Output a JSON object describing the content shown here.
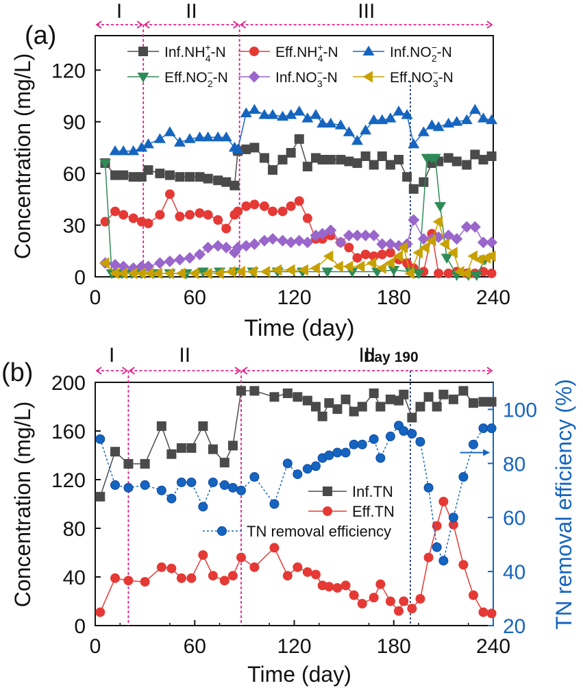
{
  "chart_data": [
    {
      "panel": "(a)",
      "type": "line",
      "xlabel": "Time (day)",
      "ylabel": "Concentration (mg/L)",
      "xlim": [
        0,
        240
      ],
      "ylim": [
        0,
        140
      ],
      "xticks": [
        0,
        60,
        120,
        180,
        240
      ],
      "yticks": [
        0,
        30,
        60,
        90,
        120
      ],
      "phases": [
        {
          "label": "I",
          "start": 0,
          "end": 29
        },
        {
          "label": "II",
          "start": 29,
          "end": 87
        },
        {
          "label": "III",
          "start": 87,
          "end": 240
        }
      ],
      "markers": [
        {
          "x": 190,
          "label": ""
        }
      ],
      "series": [
        {
          "key": "infnh4",
          "name": "Inf.NH₄⁺-N",
          "base": "Inf.NH",
          "sub": "4",
          "sup": "+",
          "tail": "-N",
          "color": "#4a4a4a",
          "marker": "square",
          "x": [
            6,
            12,
            17,
            23,
            28,
            32,
            39,
            45,
            51,
            57,
            63,
            68,
            74,
            79,
            84,
            86,
            91,
            96,
            102,
            107,
            113,
            118,
            123,
            128,
            133,
            137,
            142,
            148,
            153,
            158,
            163,
            168,
            173,
            178,
            183,
            188,
            192,
            198,
            203,
            207,
            213,
            218,
            224,
            229,
            234,
            239
          ],
          "y": [
            66,
            59,
            59,
            58,
            58,
            62,
            60,
            59,
            58,
            58,
            58,
            57,
            56,
            55,
            53,
            73,
            74,
            75,
            69,
            62,
            68,
            72,
            80,
            64,
            69,
            68,
            68,
            68,
            67,
            66,
            70,
            65,
            70,
            65,
            68,
            58,
            51,
            55,
            66,
            67,
            69,
            67,
            65,
            71,
            68,
            70
          ]
        },
        {
          "key": "effnh4",
          "name": "Eff.NH₄⁺-N",
          "base": "Eff.NH",
          "sub": "4",
          "sup": "+",
          "tail": "-N",
          "color": "#e53935",
          "marker": "circle",
          "x": [
            6,
            12,
            17,
            23,
            28,
            32,
            39,
            45,
            51,
            57,
            63,
            68,
            74,
            79,
            84,
            86,
            91,
            96,
            102,
            107,
            113,
            118,
            123,
            128,
            133,
            137,
            142,
            148,
            153,
            158,
            163,
            168,
            173,
            178,
            183,
            188,
            192,
            198,
            203,
            207,
            213,
            218,
            224,
            229,
            234,
            239
          ],
          "y": [
            32,
            38,
            36,
            34,
            32,
            31,
            36,
            48,
            35,
            36,
            37,
            36,
            33,
            28,
            36,
            38,
            41,
            42,
            41,
            38,
            38,
            41,
            44,
            34,
            22,
            22,
            24,
            20,
            17,
            11,
            13,
            12,
            13,
            14,
            10,
            8,
            5,
            3,
            25,
            2,
            2,
            3,
            2,
            2,
            3,
            2
          ]
        },
        {
          "key": "infno2",
          "name": "Inf.NO₂⁻-N",
          "base": "Inf.NO",
          "sub": "2",
          "sup": "−",
          "tail": "-N",
          "color": "#1565c0",
          "marker": "triangle-up",
          "x": [
            12,
            17,
            23,
            28,
            32,
            39,
            45,
            51,
            57,
            63,
            68,
            74,
            79,
            84,
            86,
            91,
            96,
            102,
            107,
            113,
            118,
            123,
            128,
            133,
            137,
            142,
            148,
            153,
            158,
            163,
            168,
            173,
            178,
            183,
            188,
            192,
            198,
            203,
            207,
            213,
            218,
            224,
            229,
            234,
            239
          ],
          "y": [
            73,
            73,
            73,
            75,
            77,
            80,
            84,
            78,
            80,
            81,
            81,
            81,
            81,
            75,
            74,
            95,
            97,
            94,
            94,
            93,
            94,
            96,
            92,
            94,
            89,
            89,
            88,
            84,
            79,
            85,
            91,
            91,
            92,
            96,
            94,
            77,
            84,
            88,
            87,
            89,
            90,
            91,
            97,
            92,
            91
          ]
        },
        {
          "key": "effno2",
          "name": "Eff.NO₂⁻-N",
          "base": "Eff.NO",
          "sub": "2",
          "sup": "−",
          "tail": "-N",
          "color": "#2e8b57",
          "marker": "triangle-down",
          "x": [
            6,
            10,
            16,
            22,
            28,
            35,
            45,
            55,
            65,
            75,
            84,
            95,
            110,
            125,
            140,
            155,
            170,
            180,
            190,
            195,
            200,
            203,
            205,
            208,
            212,
            218,
            225,
            230,
            235
          ],
          "y": [
            66,
            2,
            2,
            2,
            2,
            2,
            2,
            2,
            3,
            3,
            3,
            3,
            3,
            3,
            3,
            3,
            3,
            4,
            3,
            2,
            69,
            69,
            69,
            41,
            11,
            1,
            1,
            1,
            10
          ]
        },
        {
          "key": "infno3",
          "name": "Inf.NO₃⁻-N",
          "base": "Inf.NO",
          "sub": "3",
          "sup": "−",
          "tail": "-N",
          "color": "#9966cc",
          "marker": "diamond",
          "x": [
            6,
            12,
            17,
            23,
            28,
            32,
            39,
            45,
            51,
            57,
            63,
            68,
            74,
            79,
            84,
            86,
            91,
            96,
            102,
            107,
            113,
            118,
            123,
            128,
            133,
            137,
            142,
            148,
            153,
            158,
            163,
            168,
            173,
            178,
            183,
            188,
            192,
            198,
            203,
            207,
            213,
            218,
            224,
            229,
            234,
            239
          ],
          "y": [
            8,
            7,
            6,
            5,
            6,
            6,
            8,
            9,
            10,
            11,
            13,
            17,
            18,
            17,
            14,
            17,
            18,
            19,
            21,
            22,
            21,
            20,
            21,
            20,
            24,
            25,
            27,
            20,
            24,
            24,
            24,
            24,
            19,
            19,
            18,
            19,
            33,
            22,
            22,
            23,
            24,
            22,
            29,
            29,
            20,
            20
          ]
        },
        {
          "key": "effno3",
          "name": "Eff.NO₃⁻-N",
          "base": "Eff.NO",
          "sub": "3",
          "sup": "−",
          "tail": "-N",
          "color": "#c8a000",
          "marker": "triangle-left",
          "x": [
            6,
            12,
            17,
            23,
            28,
            33,
            38,
            45,
            52,
            60,
            68,
            75,
            82,
            88,
            95,
            103,
            110,
            118,
            126,
            133,
            141,
            147,
            153,
            160,
            167,
            173,
            178,
            183,
            186,
            190,
            195,
            199,
            203,
            207,
            211,
            216,
            220,
            224,
            228,
            232,
            236,
            239
          ],
          "y": [
            8,
            2,
            2,
            2,
            2,
            2,
            2,
            2,
            2,
            2,
            2,
            2,
            3,
            3,
            3,
            3,
            4,
            4,
            4,
            5,
            12,
            6,
            6,
            6,
            8,
            5,
            8,
            12,
            17,
            2,
            14,
            17,
            21,
            32,
            19,
            14,
            3,
            2,
            12,
            10,
            11,
            12
          ]
        }
      ]
    },
    {
      "panel": "(b)",
      "type": "line",
      "xlabel": "Time (day)",
      "ylabel": "Concentration (mg/L)",
      "y2label": "TN removal efficiency (%)",
      "xlim": [
        0,
        240
      ],
      "ylim": [
        0,
        200
      ],
      "y2lim": [
        20,
        110
      ],
      "xticks": [
        0,
        60,
        120,
        180,
        240
      ],
      "yticks": [
        0,
        40,
        80,
        120,
        160,
        200
      ],
      "y2ticks": [
        20,
        40,
        60,
        80,
        100
      ],
      "phases": [
        {
          "label": "I",
          "start": 0,
          "end": 20
        },
        {
          "label": "II",
          "start": 20,
          "end": 88
        },
        {
          "label": "III",
          "start": 88,
          "end": 240
        }
      ],
      "markers": [
        {
          "x": 190,
          "label": "Day 190"
        }
      ],
      "arrow": {
        "x_from": 220,
        "x_to": 238,
        "y2": 84
      },
      "series": [
        {
          "key": "inftn",
          "name": "Inf.TN",
          "color": "#4a4a4a",
          "marker": "square",
          "axis": "left",
          "x": [
            3,
            12,
            20,
            30,
            40,
            46,
            52,
            58,
            65,
            71,
            78,
            83,
            88,
            96,
            108,
            116,
            122,
            128,
            133,
            137,
            141,
            146,
            151,
            156,
            161,
            168,
            172,
            178,
            183,
            186,
            191,
            196,
            201,
            206,
            210,
            216,
            222,
            228,
            234,
            239
          ],
          "y": [
            106,
            143,
            133,
            133,
            164,
            141,
            146,
            146,
            164,
            145,
            134,
            148,
            193,
            193,
            188,
            191,
            188,
            185,
            180,
            172,
            183,
            178,
            186,
            176,
            180,
            191,
            180,
            186,
            185,
            190,
            171,
            180,
            188,
            180,
            190,
            186,
            193,
            183,
            184,
            184
          ]
        },
        {
          "key": "efftn",
          "name": "Eff.TN",
          "color": "#e53935",
          "marker": "circle",
          "axis": "left",
          "x": [
            3,
            12,
            20,
            30,
            40,
            46,
            52,
            58,
            65,
            71,
            78,
            83,
            88,
            96,
            108,
            116,
            122,
            128,
            133,
            137,
            141,
            146,
            151,
            156,
            161,
            168,
            172,
            178,
            183,
            186,
            191,
            196,
            201,
            206,
            210,
            216,
            222,
            228,
            234,
            239
          ],
          "y": [
            11,
            39,
            37,
            36,
            48,
            47,
            39,
            39,
            58,
            41,
            37,
            41,
            56,
            48,
            64,
            41,
            48,
            44,
            42,
            33,
            32,
            31,
            33,
            25,
            18,
            23,
            34,
            20,
            12,
            20,
            14,
            22,
            56,
            82,
            102,
            83,
            50,
            25,
            11,
            10
          ]
        },
        {
          "key": "tnre",
          "name": "TN removal efficiency",
          "color": "#1565c0",
          "marker": "sphere",
          "axis": "right",
          "dotted": true,
          "x": [
            3,
            12,
            20,
            30,
            40,
            46,
            52,
            58,
            65,
            71,
            78,
            83,
            88,
            96,
            108,
            116,
            122,
            128,
            133,
            137,
            141,
            146,
            151,
            156,
            161,
            168,
            172,
            178,
            183,
            186,
            191,
            196,
            201,
            206,
            210,
            216,
            222,
            228,
            234,
            239
          ],
          "y": [
            89,
            72,
            71,
            72,
            70,
            67,
            73,
            73,
            64,
            73,
            72,
            71,
            70,
            75,
            65,
            80,
            76,
            78,
            79,
            82,
            83,
            84,
            84,
            87,
            87,
            89,
            82,
            90,
            94,
            92,
            91,
            88,
            71,
            49,
            44,
            60,
            75,
            87,
            93,
            93
          ]
        }
      ]
    }
  ]
}
